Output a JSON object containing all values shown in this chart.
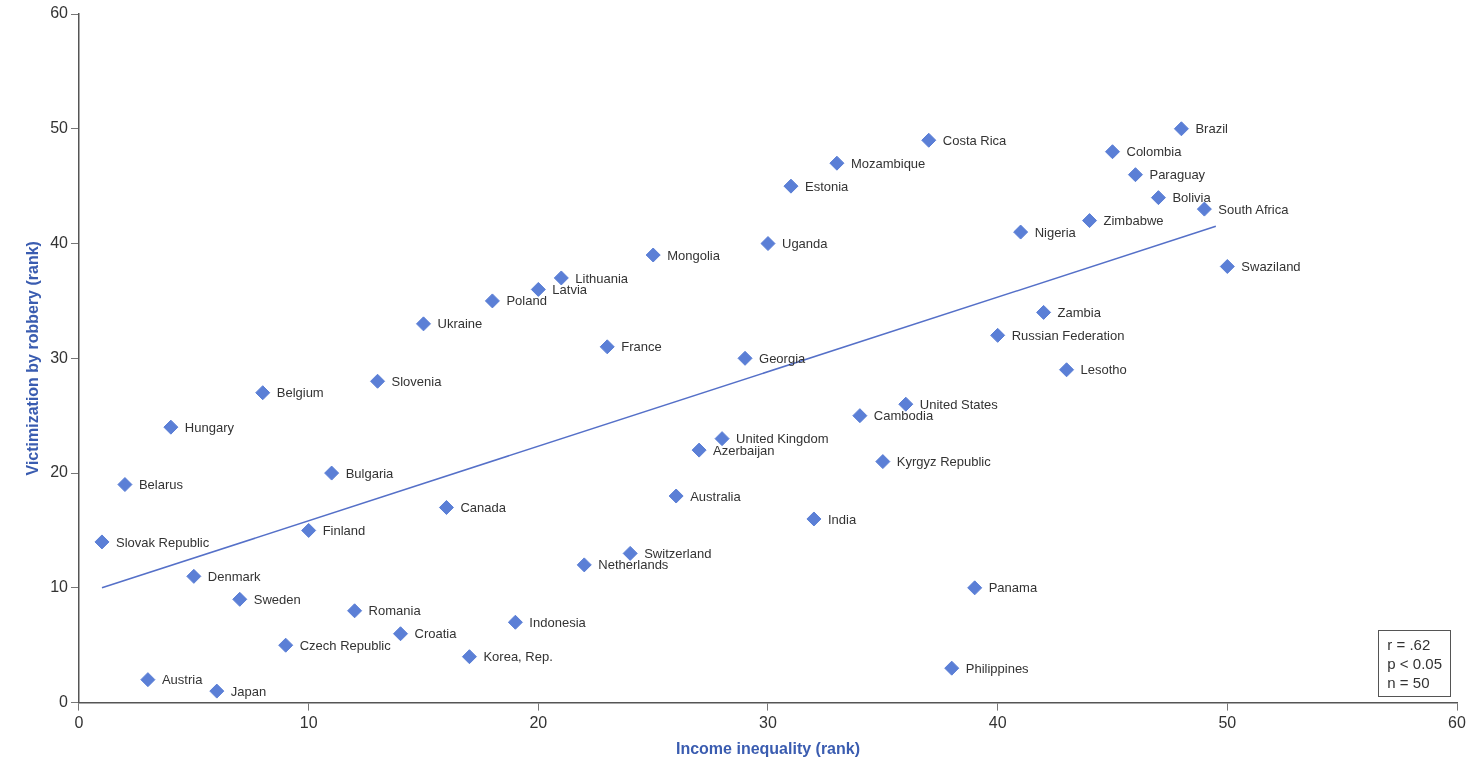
{
  "chart_data": {
    "type": "scatter",
    "xlabel": "Income inequality (rank)",
    "ylabel": "Victimization by robbery (rank)",
    "xlim": [
      0,
      60
    ],
    "ylim": [
      0,
      60
    ],
    "xticks": [
      0,
      10,
      20,
      30,
      40,
      50,
      60
    ],
    "yticks": [
      0,
      10,
      20,
      30,
      40,
      50,
      60
    ],
    "grid": false,
    "legend": false,
    "marker": "diamond",
    "annotations": [
      "r = .62",
      "p < 0.05",
      "n = 50"
    ],
    "series": [
      {
        "type": "scatter",
        "color": "#5b7fd6",
        "x": [
          1,
          2,
          3,
          4,
          5,
          6,
          7,
          8,
          9,
          10,
          11,
          12,
          13,
          14,
          15,
          16,
          17,
          18,
          19,
          20,
          21,
          22,
          23,
          24,
          25,
          26,
          27,
          28,
          29,
          30,
          31,
          32,
          33,
          34,
          35,
          36,
          37,
          38,
          39,
          40,
          41,
          42,
          43,
          44,
          45,
          46,
          47,
          48,
          49,
          50
        ],
        "values": [
          14,
          19,
          2,
          24,
          11,
          1,
          9,
          27,
          5,
          15,
          20,
          8,
          28,
          6,
          33,
          17,
          4,
          35,
          7,
          36,
          37,
          12,
          31,
          13,
          39,
          18,
          22,
          23,
          30,
          40,
          45,
          16,
          47,
          25,
          21,
          26,
          49,
          3,
          10,
          32,
          41,
          34,
          29,
          42,
          48,
          46,
          44,
          50,
          43,
          38
        ],
        "value_labels": [
          "Slovak Republic",
          "Belarus",
          "Austria",
          "Hungary",
          "Denmark",
          "Japan",
          "Sweden",
          "Belgium",
          "Czech Republic",
          "Finland",
          "Bulgaria",
          "Romania",
          "Slovenia",
          "Croatia",
          "Ukraine",
          "Canada",
          "Korea, Rep.",
          "Poland",
          "Indonesia",
          "Latvia",
          "Lithuania",
          "Netherlands",
          "France",
          "Switzerland",
          "Mongolia",
          "Australia",
          "Azerbaijan",
          "United Kingdom",
          "Georgia",
          "Uganda",
          "Estonia",
          "India",
          "Mozambique",
          "Cambodia",
          "Kyrgyz Republic",
          "United States",
          "Costa Rica",
          "Philippines",
          "Panama",
          "Russian Federation",
          "Nigeria",
          "Zambia",
          "Lesotho",
          "Zimbabwe",
          "Colombia",
          "Paraguay",
          "Bolivia",
          "Brazil",
          "South Africa",
          "Swaziland"
        ]
      },
      {
        "type": "line",
        "color": "#5570c8",
        "marker": "none",
        "x": [
          1,
          49.5
        ],
        "values": [
          10,
          41.5
        ]
      }
    ]
  }
}
